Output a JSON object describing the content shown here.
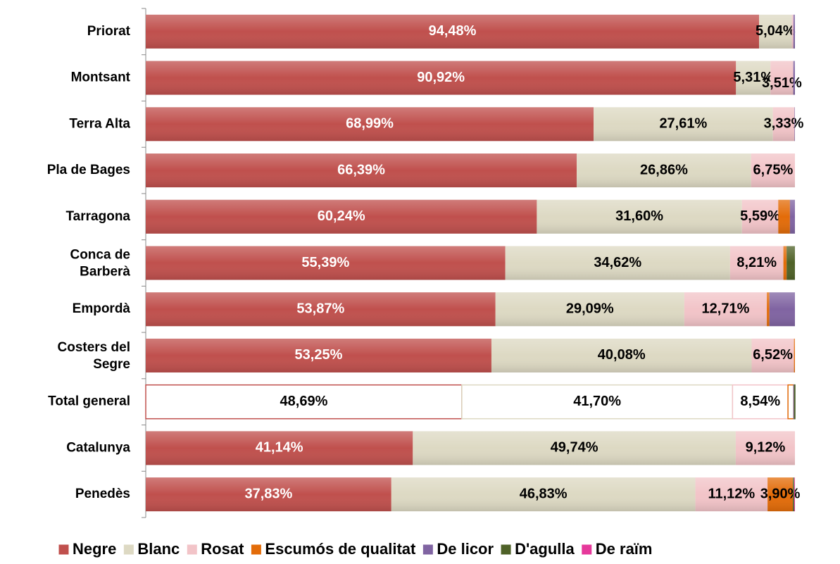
{
  "chart_data": {
    "type": "stacked_barh",
    "categories": [
      "Priorat",
      "Montsant",
      "Terra Alta",
      "Pla de Bages",
      "Tarragona",
      "Conca de Barberà",
      "Empordà",
      "Costers del Segre",
      "Total general",
      "Catalunya",
      "Penedès"
    ],
    "xlim": [
      0,
      100
    ],
    "highlight_index": 8,
    "legend": "bottom",
    "series": [
      {
        "name": "Negre",
        "color": "#c0504d",
        "values": [
          94.48,
          90.92,
          68.99,
          66.39,
          60.24,
          55.39,
          53.87,
          53.25,
          48.69,
          41.14,
          37.83
        ],
        "value_labels": [
          "94,48%",
          "90,92%",
          "68,99%",
          "66,39%",
          "60,24%",
          "55,39%",
          "53,87%",
          "53,25%",
          "48,69%",
          "41,14%",
          "37,83%"
        ]
      },
      {
        "name": "Blanc",
        "color": "#ddd9c3",
        "values": [
          5.04,
          5.31,
          27.61,
          26.86,
          31.6,
          34.62,
          29.09,
          40.08,
          41.7,
          49.74,
          46.83
        ],
        "value_labels": [
          "5,04%",
          "5,31%",
          "27,61%",
          "26,86%",
          "31,60%",
          "34,62%",
          "29,09%",
          "40,08%",
          "41,70%",
          "49,74%",
          "46,83%"
        ]
      },
      {
        "name": "Rosat",
        "color": "#f2c4c8",
        "values": [
          0.24,
          3.51,
          3.33,
          6.75,
          5.59,
          8.21,
          12.71,
          6.52,
          8.54,
          9.12,
          11.12
        ],
        "value_labels": [
          null,
          "3,51%",
          "3,33%",
          "6,75%",
          "5,59%",
          "8,21%",
          "12,71%",
          "6,52%",
          "8,54%",
          "9,12%",
          "11,12%"
        ]
      },
      {
        "name": "Escumós de qualitat",
        "color": "#e36c09",
        "values": [
          0,
          0,
          0,
          0,
          1.8,
          0.5,
          0.4,
          0.15,
          0.9,
          0,
          3.9
        ],
        "value_labels": [
          null,
          null,
          null,
          null,
          null,
          null,
          null,
          null,
          null,
          null,
          "3,90%"
        ]
      },
      {
        "name": "De licor",
        "color": "#8064a2",
        "values": [
          0.24,
          0.26,
          0.07,
          0,
          0.77,
          0,
          3.93,
          0,
          0.1,
          0,
          0
        ],
        "value_labels": [
          null,
          null,
          null,
          null,
          null,
          null,
          null,
          null,
          null,
          null,
          null
        ]
      },
      {
        "name": "D'agulla",
        "color": "#4f6228",
        "values": [
          0,
          0,
          0,
          0,
          0,
          1.28,
          0,
          0,
          0.07,
          0,
          0.2
        ],
        "value_labels": [
          null,
          null,
          null,
          null,
          null,
          null,
          null,
          null,
          null,
          null,
          null
        ]
      },
      {
        "name": "De raïm",
        "color": "#e6399b",
        "values": [
          0,
          0,
          0,
          0,
          0,
          0,
          0,
          0,
          0,
          0,
          0.12
        ],
        "value_labels": [
          null,
          null,
          null,
          null,
          null,
          null,
          null,
          null,
          null,
          null,
          null
        ]
      }
    ]
  }
}
